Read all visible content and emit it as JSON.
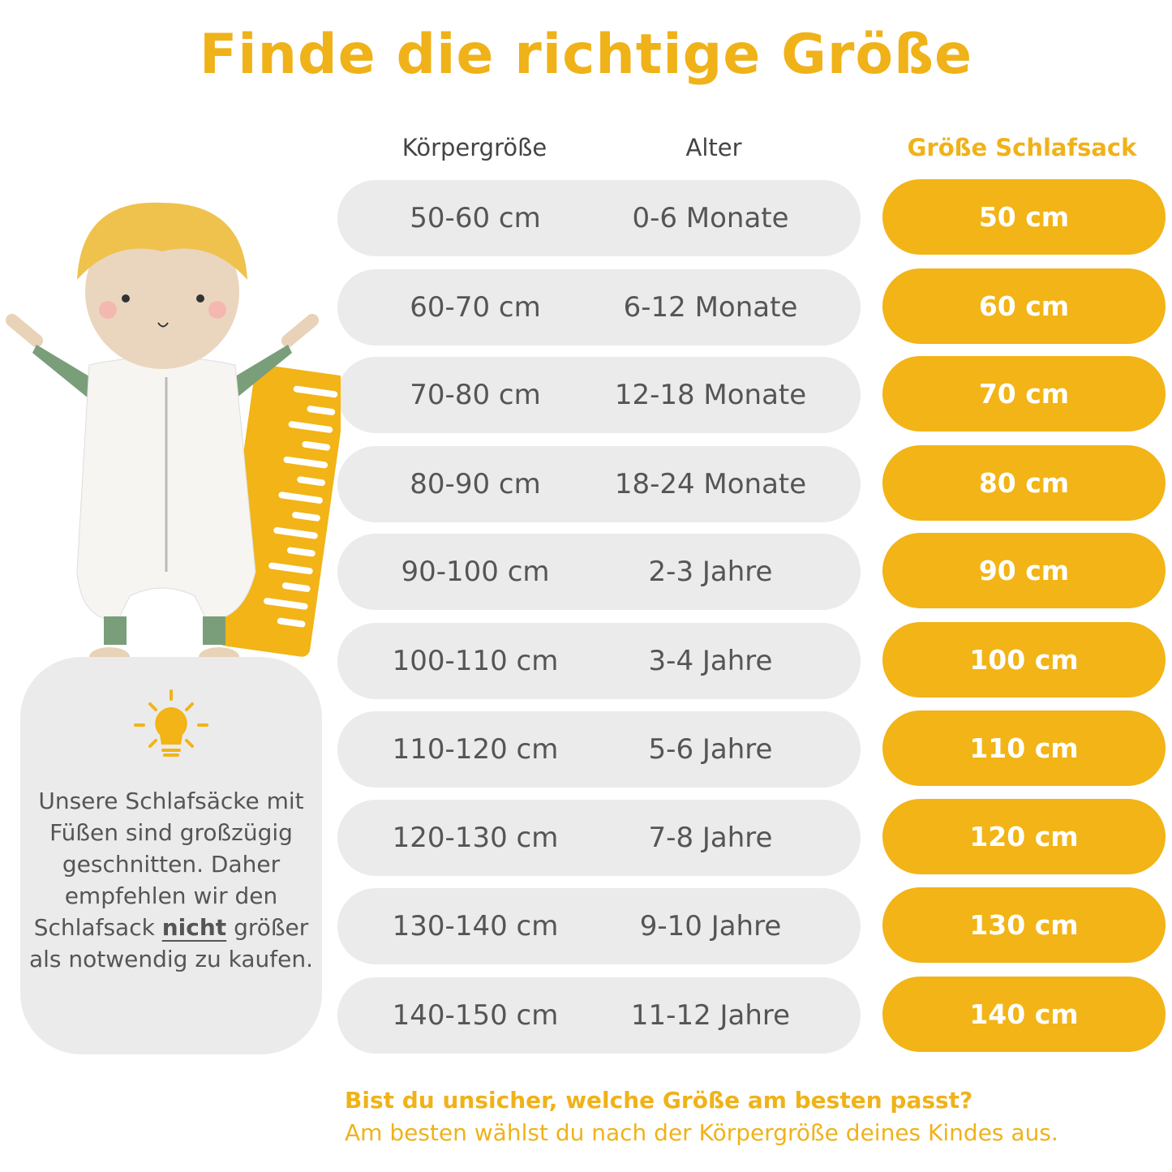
{
  "title": "Finde die richtige Größe",
  "headers": {
    "height": "Körpergröße",
    "age": "Alter",
    "size": "Größe Schlafsack"
  },
  "rows": [
    {
      "height": "50-60 cm",
      "age": "0-6 Monate",
      "size": "50 cm"
    },
    {
      "height": "60-70 cm",
      "age": "6-12 Monate",
      "size": "60 cm"
    },
    {
      "height": "70-80 cm",
      "age": "12-18 Monate",
      "size": "70 cm"
    },
    {
      "height": "80-90 cm",
      "age": "18-24 Monate",
      "size": "80 cm"
    },
    {
      "height": "90-100 cm",
      "age": "2-3 Jahre",
      "size": "90 cm"
    },
    {
      "height": "100-110 cm",
      "age": "3-4 Jahre",
      "size": "100 cm"
    },
    {
      "height": "110-120 cm",
      "age": "5-6 Jahre",
      "size": "110 cm"
    },
    {
      "height": "120-130 cm",
      "age": "7-8 Jahre",
      "size": "120 cm"
    },
    {
      "height": "130-140 cm",
      "age": "9-10 Jahre",
      "size": "130 cm"
    },
    {
      "height": "140-150 cm",
      "age": "11-12 Jahre",
      "size": "140 cm"
    }
  ],
  "info": {
    "icon": "lightbulb-icon",
    "before": "Unsere Schlafsäcke mit Füßen sind großzügig geschnitten. Daher empfehlen wir den Schlafsack",
    "emphasis": "nicht",
    "after": "größer als notwendig zu kaufen."
  },
  "footer": {
    "question": "Bist du unsicher, welche Größe am besten passt?",
    "answer": "Am besten wählst du nach der Körpergröße deines Kindes aus."
  },
  "colors": {
    "accent": "#F2B416",
    "row_bg": "#EBEBEB",
    "text": "#555555"
  }
}
